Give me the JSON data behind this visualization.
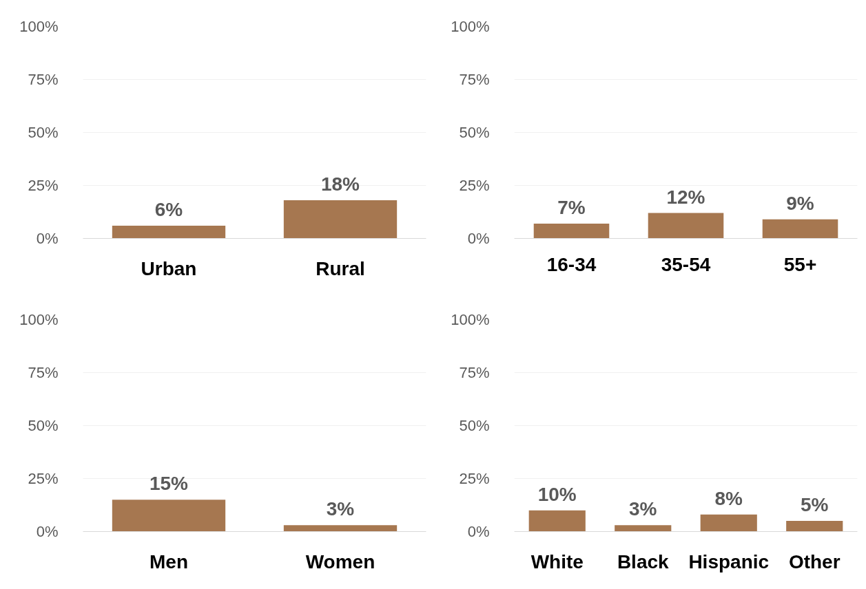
{
  "chart_data": [
    {
      "type": "bar",
      "categories": [
        "Urban",
        "Rural"
      ],
      "values": [
        6,
        18
      ],
      "value_labels": [
        "6%",
        "18%"
      ],
      "color": "#a67750",
      "ylim": [
        0,
        100
      ],
      "yticks": [
        {
          "value": 0,
          "label": "0%"
        },
        {
          "value": 25,
          "label": "25%"
        },
        {
          "value": 50,
          "label": "50%"
        },
        {
          "value": 75,
          "label": "75%"
        },
        {
          "value": 100,
          "label": "100%"
        }
      ],
      "grid": "y"
    },
    {
      "type": "bar",
      "categories": [
        "16-34",
        "35-54",
        "55+"
      ],
      "values": [
        7,
        12,
        9
      ],
      "value_labels": [
        "7%",
        "12%",
        "9%"
      ],
      "color": "#a67750",
      "ylim": [
        0,
        100
      ],
      "yticks": [
        {
          "value": 0,
          "label": "0%"
        },
        {
          "value": 25,
          "label": "25%"
        },
        {
          "value": 50,
          "label": "50%"
        },
        {
          "value": 75,
          "label": "75%"
        },
        {
          "value": 100,
          "label": "100%"
        }
      ],
      "grid": "y"
    },
    {
      "type": "bar",
      "categories": [
        "Men",
        "Women"
      ],
      "values": [
        15,
        3
      ],
      "value_labels": [
        "15%",
        "3%"
      ],
      "color": "#a67750",
      "ylim": [
        0,
        100
      ],
      "yticks": [
        {
          "value": 0,
          "label": "0%"
        },
        {
          "value": 25,
          "label": "25%"
        },
        {
          "value": 50,
          "label": "50%"
        },
        {
          "value": 75,
          "label": "75%"
        },
        {
          "value": 100,
          "label": "100%"
        }
      ],
      "grid": "y"
    },
    {
      "type": "bar",
      "categories": [
        "White",
        "Black",
        "Hispanic",
        "Other"
      ],
      "values": [
        10,
        3,
        8,
        5
      ],
      "value_labels": [
        "10%",
        "3%",
        "8%",
        "5%"
      ],
      "color": "#a67750",
      "ylim": [
        0,
        100
      ],
      "yticks": [
        {
          "value": 0,
          "label": "0%"
        },
        {
          "value": 25,
          "label": "25%"
        },
        {
          "value": 50,
          "label": "50%"
        },
        {
          "value": 75,
          "label": "75%"
        },
        {
          "value": 100,
          "label": "100%"
        }
      ],
      "grid": "y"
    }
  ]
}
